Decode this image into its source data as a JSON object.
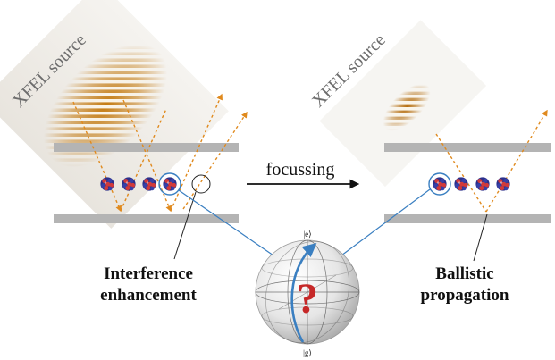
{
  "left_panel": {
    "source_label": "XFEL source",
    "caption_line1": "Interference",
    "caption_line2": "enhancement",
    "nuclei_count": 4
  },
  "right_panel": {
    "source_label": "XFEL source",
    "caption_line1": "Ballistic",
    "caption_line2": "propagation",
    "nuclei_count": 4
  },
  "middle": {
    "arrow_label": "focussing"
  },
  "bloch_sphere": {
    "top_label": "|e⟩",
    "bottom_label": "|g⟩",
    "center_symbol": "?"
  },
  "colors": {
    "mirror": "#b4b4b4",
    "beam": "#e08a1e",
    "link": "#3a7fc1",
    "question": "#c62828",
    "wave_dark": "#c47a10",
    "text": "#111111"
  }
}
